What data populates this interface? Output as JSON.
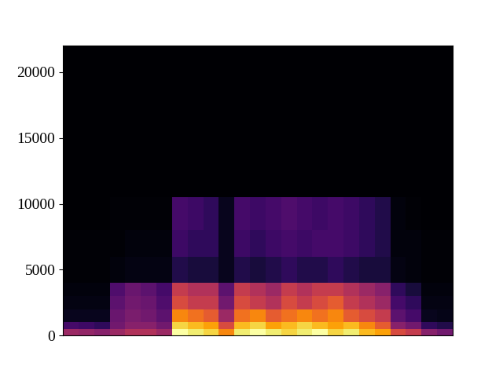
{
  "chart_data": {
    "type": "heatmap",
    "freq_bins": [
      0,
      500,
      1000,
      2000,
      3000,
      4000,
      6000,
      8000,
      10500,
      22050
    ],
    "cells": [
      [
        0.4,
        0.38,
        0.35,
        0.4,
        0.45,
        0.45,
        0.4,
        0.95,
        0.9,
        0.85,
        0.7,
        0.9,
        0.95,
        0.9,
        0.85,
        0.9,
        0.95,
        0.85,
        0.9,
        0.8,
        0.75,
        0.55,
        0.5,
        0.35,
        0.3
      ],
      [
        0.2,
        0.18,
        0.15,
        0.3,
        0.35,
        0.35,
        0.3,
        0.85,
        0.8,
        0.75,
        0.55,
        0.8,
        0.85,
        0.75,
        0.8,
        0.85,
        0.8,
        0.75,
        0.8,
        0.7,
        0.6,
        0.35,
        0.3,
        0.15,
        0.12
      ],
      [
        0.05,
        0.05,
        0.05,
        0.28,
        0.32,
        0.3,
        0.25,
        0.7,
        0.65,
        0.6,
        0.4,
        0.65,
        0.7,
        0.6,
        0.65,
        0.7,
        0.65,
        0.7,
        0.6,
        0.55,
        0.5,
        0.25,
        0.2,
        0.05,
        0.04
      ],
      [
        0.03,
        0.03,
        0.03,
        0.25,
        0.3,
        0.28,
        0.22,
        0.55,
        0.5,
        0.5,
        0.3,
        0.55,
        0.5,
        0.45,
        0.55,
        0.5,
        0.55,
        0.6,
        0.5,
        0.45,
        0.4,
        0.2,
        0.15,
        0.03,
        0.03
      ],
      [
        0.02,
        0.02,
        0.02,
        0.22,
        0.28,
        0.25,
        0.2,
        0.5,
        0.45,
        0.45,
        0.25,
        0.5,
        0.45,
        0.4,
        0.5,
        0.45,
        0.5,
        0.5,
        0.45,
        0.4,
        0.35,
        0.15,
        0.1,
        0.02,
        0.02
      ],
      [
        0.01,
        0.01,
        0.01,
        0.02,
        0.03,
        0.03,
        0.03,
        0.12,
        0.1,
        0.1,
        0.05,
        0.12,
        0.1,
        0.12,
        0.15,
        0.12,
        0.12,
        0.15,
        0.12,
        0.1,
        0.1,
        0.03,
        0.02,
        0.01,
        0.01
      ],
      [
        0.01,
        0.01,
        0.01,
        0.01,
        0.02,
        0.02,
        0.02,
        0.18,
        0.15,
        0.15,
        0.05,
        0.18,
        0.15,
        0.18,
        0.2,
        0.18,
        0.2,
        0.2,
        0.18,
        0.15,
        0.12,
        0.02,
        0.02,
        0.01,
        0.01
      ],
      [
        0.0,
        0.0,
        0.0,
        0.01,
        0.01,
        0.01,
        0.01,
        0.2,
        0.18,
        0.15,
        0.05,
        0.2,
        0.18,
        0.2,
        0.22,
        0.2,
        0.18,
        0.2,
        0.18,
        0.15,
        0.12,
        0.02,
        0.01,
        0.0,
        0.0
      ],
      [
        0.0,
        0.0,
        0.0,
        0.0,
        0.0,
        0.0,
        0.0,
        0.0,
        0.0,
        0.0,
        0.0,
        0.0,
        0.0,
        0.0,
        0.0,
        0.0,
        0.0,
        0.0,
        0.0,
        0.0,
        0.0,
        0.0,
        0.0,
        0.0,
        0.0
      ]
    ],
    "ylim": [
      0,
      22050
    ],
    "yticks": [
      0,
      5000,
      10000,
      15000,
      20000
    ],
    "tick_labels": "y"
  }
}
